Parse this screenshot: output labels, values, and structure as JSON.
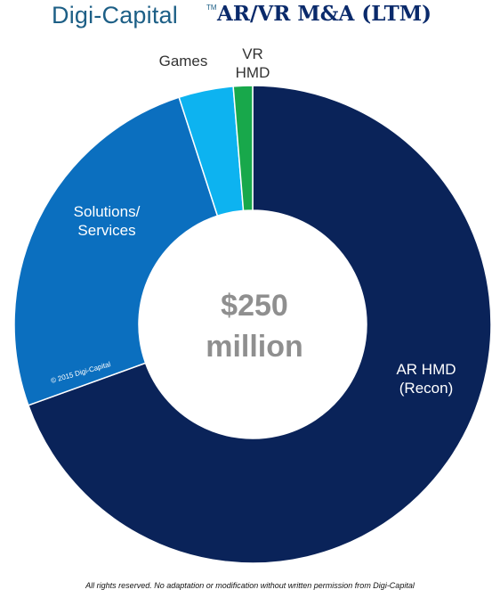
{
  "header": {
    "brand": "Digi-Capital",
    "trademark": "TM",
    "title": "AR/VR M&A (LTM)"
  },
  "chart_data": {
    "type": "pie",
    "donut": true,
    "center_label": [
      "$250",
      "million"
    ],
    "slices": [
      {
        "label": [
          "AR HMD",
          "(Recon)"
        ],
        "value": 69.5,
        "color": "#0a2359",
        "label_color": "#ffffff"
      },
      {
        "label": [
          "Solutions/",
          "Services"
        ],
        "value": 25.5,
        "color": "#0b6fbf",
        "label_color": "#ffffff"
      },
      {
        "label": [
          "Games"
        ],
        "value": 3.7,
        "color": "#0db3f0",
        "label_color": "#333333"
      },
      {
        "label": [
          "VR",
          "HMD"
        ],
        "value": 1.3,
        "color": "#18a84b",
        "label_color": "#333333"
      }
    ],
    "copyright": "© 2015 Digi-Capital"
  },
  "footer": {
    "text": "All rights reserved. No adaptation or modification without written permission from Digi-Capital"
  }
}
